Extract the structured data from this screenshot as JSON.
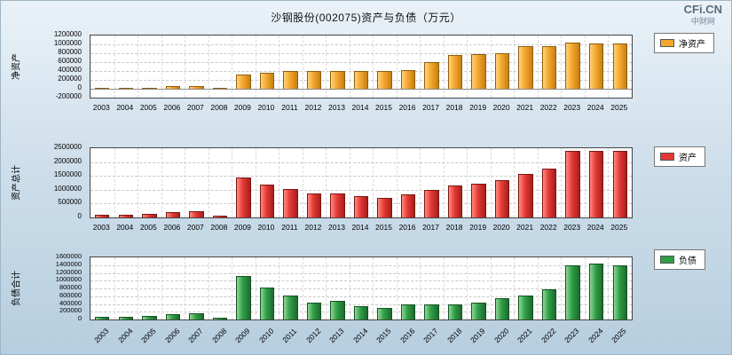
{
  "header": {
    "title": "沙钢股份(002075)资产与负债（万元）",
    "logo": "CFi.CN",
    "logo_sub": "中财网"
  },
  "chart_data": [
    {
      "type": "bar",
      "id": "net-assets",
      "axis_label": "净资产",
      "legend": "净资产",
      "ylim": [
        -200000,
        1200000
      ],
      "ticks": [
        1200000,
        1000000,
        800000,
        600000,
        400000,
        200000,
        0,
        -200000
      ],
      "rotate_x": false,
      "colors": {
        "light": "#ffd27a",
        "base": "#f3a72e",
        "dark": "#c77f12",
        "border": "#8f5e0e"
      },
      "categories": [
        "2003",
        "2004",
        "2005",
        "2006",
        "2007",
        "2008",
        "2009",
        "2010",
        "2011",
        "2012",
        "2013",
        "2014",
        "2015",
        "2016",
        "2017",
        "2018",
        "2019",
        "2020",
        "2021",
        "2022",
        "2023",
        "2024",
        "2025"
      ],
      "values": [
        20000,
        25000,
        30000,
        60000,
        60000,
        15000,
        330000,
        370000,
        400000,
        395000,
        400000,
        410000,
        395000,
        430000,
        610000,
        760000,
        780000,
        800000,
        960000,
        970000,
        1040000,
        1020000,
        1020000
      ]
    },
    {
      "type": "bar",
      "id": "total-assets",
      "axis_label": "资产总计",
      "legend": "资产",
      "ylim": [
        0,
        2500000
      ],
      "ticks": [
        2500000,
        2000000,
        1500000,
        1000000,
        500000,
        0
      ],
      "rotate_x": false,
      "colors": {
        "light": "#ff8a80",
        "base": "#e53935",
        "dark": "#a61f1c",
        "border": "#7c1512"
      },
      "categories": [
        "2003",
        "2004",
        "2005",
        "2006",
        "2007",
        "2008",
        "2009",
        "2010",
        "2011",
        "2012",
        "2013",
        "2014",
        "2015",
        "2016",
        "2017",
        "2018",
        "2019",
        "2020",
        "2021",
        "2022",
        "2023",
        "2024",
        "2025"
      ],
      "values": [
        90000,
        110000,
        130000,
        190000,
        210000,
        70000,
        1450000,
        1200000,
        1020000,
        860000,
        880000,
        770000,
        700000,
        820000,
        1000000,
        1150000,
        1210000,
        1350000,
        1580000,
        1750000,
        2400000,
        2420000,
        2400000
      ]
    },
    {
      "type": "bar",
      "id": "total-liabilities",
      "axis_label": "负债合计",
      "legend": "负债",
      "ylim": [
        0,
        1600000
      ],
      "ticks": [
        1600000,
        1400000,
        1200000,
        1000000,
        800000,
        600000,
        400000,
        200000,
        0
      ],
      "rotate_x": true,
      "colors": {
        "light": "#8fd694",
        "base": "#2f9e47",
        "dark": "#1c6b2d",
        "border": "#145222"
      },
      "categories": [
        "2003",
        "2004",
        "2005",
        "2006",
        "2007",
        "2008",
        "2009",
        "2010",
        "2011",
        "2012",
        "2013",
        "2014",
        "2015",
        "2016",
        "2017",
        "2018",
        "2019",
        "2020",
        "2021",
        "2022",
        "2023",
        "2024",
        "2025"
      ],
      "values": [
        60000,
        80000,
        100000,
        130000,
        160000,
        50000,
        1120000,
        820000,
        620000,
        440000,
        470000,
        350000,
        300000,
        380000,
        390000,
        390000,
        430000,
        540000,
        620000,
        770000,
        1390000,
        1450000,
        1400000
      ]
    }
  ]
}
